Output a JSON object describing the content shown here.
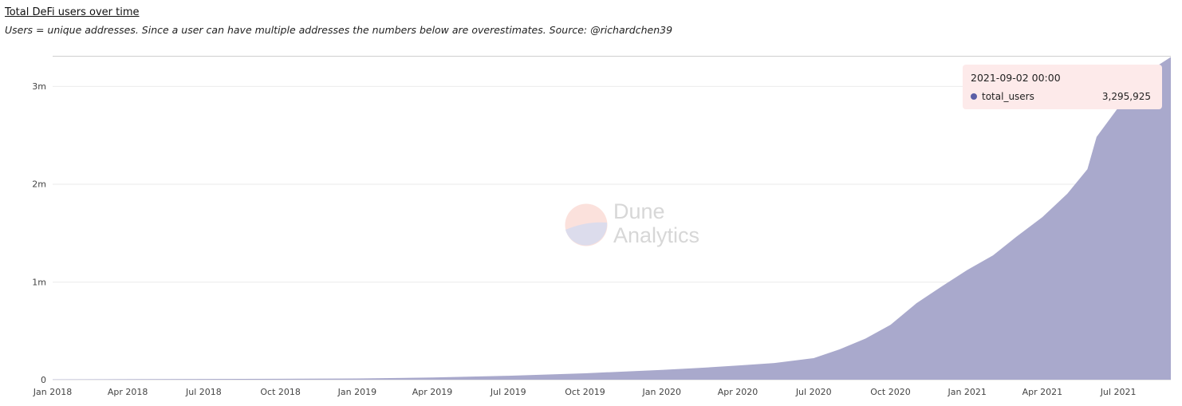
{
  "header": {
    "title": "Total DeFi users over time",
    "subtitle": "Users = unique addresses. Since a user can have multiple addresses the numbers below are overestimates. Source: @richardchen39"
  },
  "tooltip": {
    "date": "2021-09-02 00:00",
    "series": "total_users",
    "value": "3,295,925",
    "dot_color": "#5b5ea6"
  },
  "watermark": {
    "line1": "Dune",
    "line2": "Analytics"
  },
  "colors": {
    "area_fill": "#a9a9cc",
    "grid": "#ebebeb",
    "tooltip_bg": "#fdeaea"
  },
  "chart_data": {
    "type": "area",
    "series": [
      {
        "name": "total_users",
        "points": [
          [
            "2018-01-01",
            3000
          ],
          [
            "2018-04-01",
            5000
          ],
          [
            "2018-07-01",
            7000
          ],
          [
            "2018-10-01",
            9000
          ],
          [
            "2019-01-01",
            12000
          ],
          [
            "2019-04-01",
            22000
          ],
          [
            "2019-07-01",
            40000
          ],
          [
            "2019-10-01",
            65000
          ],
          [
            "2020-01-01",
            100000
          ],
          [
            "2020-02-15",
            120000
          ],
          [
            "2020-04-01",
            145000
          ],
          [
            "2020-05-15",
            170000
          ],
          [
            "2020-07-01",
            220000
          ],
          [
            "2020-08-01",
            310000
          ],
          [
            "2020-09-01",
            420000
          ],
          [
            "2020-10-01",
            560000
          ],
          [
            "2020-11-01",
            780000
          ],
          [
            "2020-12-01",
            950000
          ],
          [
            "2021-01-01",
            1120000
          ],
          [
            "2021-02-01",
            1270000
          ],
          [
            "2021-03-01",
            1460000
          ],
          [
            "2021-04-01",
            1660000
          ],
          [
            "2021-05-01",
            1900000
          ],
          [
            "2021-05-25",
            2150000
          ],
          [
            "2021-06-05",
            2480000
          ],
          [
            "2021-07-01",
            2780000
          ],
          [
            "2021-08-01",
            3120000
          ],
          [
            "2021-09-02",
            3295925
          ]
        ]
      }
    ],
    "y_ticks": [
      {
        "value": 0,
        "label": "0"
      },
      {
        "value": 1000000,
        "label": "1m"
      },
      {
        "value": 2000000,
        "label": "2m"
      },
      {
        "value": 3000000,
        "label": "3m"
      }
    ],
    "x_ticks": [
      {
        "date": "2018-01-01",
        "label": "Jan 2018"
      },
      {
        "date": "2018-04-01",
        "label": "Apr 2018"
      },
      {
        "date": "2018-07-01",
        "label": "Jul 2018"
      },
      {
        "date": "2018-10-01",
        "label": "Oct 2018"
      },
      {
        "date": "2019-01-01",
        "label": "Jan 2019"
      },
      {
        "date": "2019-04-01",
        "label": "Apr 2019"
      },
      {
        "date": "2019-07-01",
        "label": "Jul 2019"
      },
      {
        "date": "2019-10-01",
        "label": "Oct 2019"
      },
      {
        "date": "2020-01-01",
        "label": "Jan 2020"
      },
      {
        "date": "2020-04-01",
        "label": "Apr 2020"
      },
      {
        "date": "2020-07-01",
        "label": "Jul 2020"
      },
      {
        "date": "2020-10-01",
        "label": "Oct 2020"
      },
      {
        "date": "2021-01-01",
        "label": "Jan 2021"
      },
      {
        "date": "2021-04-01",
        "label": "Apr 2021"
      },
      {
        "date": "2021-07-01",
        "label": "Jul 2021"
      }
    ],
    "xlim": [
      "2018-01-01",
      "2021-09-02"
    ],
    "ylim": [
      0,
      3300000
    ],
    "grid": true,
    "legend": "none"
  }
}
